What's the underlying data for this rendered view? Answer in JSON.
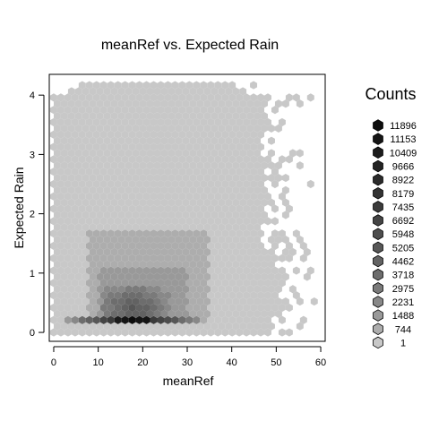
{
  "chart_data": {
    "type": "heatmap",
    "subtype": "hexbin",
    "title": "meanRef vs. Expected Rain",
    "xlabel": "meanRef",
    "ylabel": "Expected Rain",
    "xlim": [
      -1,
      61
    ],
    "ylim": [
      -0.15,
      4.35
    ],
    "xticks": [
      0,
      10,
      20,
      30,
      40,
      50,
      60
    ],
    "yticks": [
      0,
      1,
      2,
      3,
      4
    ],
    "legend": {
      "title": "Counts",
      "placement": "right",
      "levels": [
        11896,
        11153,
        10409,
        9666,
        8922,
        8179,
        7435,
        6692,
        5948,
        5205,
        4462,
        3718,
        2975,
        2231,
        1488,
        744,
        1
      ],
      "colors": [
        "#0d0d0d",
        "#151515",
        "#1c1c1c",
        "#232323",
        "#2b2b2b",
        "#333333",
        "#3b3b3b",
        "#444444",
        "#4d4d4d",
        "#575757",
        "#626262",
        "#6d6d6d",
        "#7a7a7a",
        "#888888",
        "#999999",
        "#adadad",
        "#c8c8c8"
      ]
    },
    "base_color": "#c8c8c8",
    "regions": {
      "main": {
        "x": [
          0,
          47
        ],
        "y": [
          0,
          4.05
        ]
      },
      "top_band": {
        "x": [
          5,
          41
        ],
        "y": [
          4.05,
          4.25
        ]
      },
      "mid_light": {
        "x": [
          8,
          35
        ],
        "y": [
          0.2,
          1.7
        ]
      },
      "mid_dark": {
        "x": [
          10,
          30
        ],
        "y": [
          0.2,
          1.1
        ]
      },
      "core": {
        "x": [
          11,
          26
        ],
        "y": [
          0.15,
          0.75
        ]
      },
      "bottom_band": {
        "x": [
          2,
          33
        ],
        "y": [
          0.15,
          0.3
        ]
      },
      "dark_spot": {
        "x": [
          14,
          22
        ],
        "y": [
          0.15,
          0.3
        ]
      }
    }
  }
}
